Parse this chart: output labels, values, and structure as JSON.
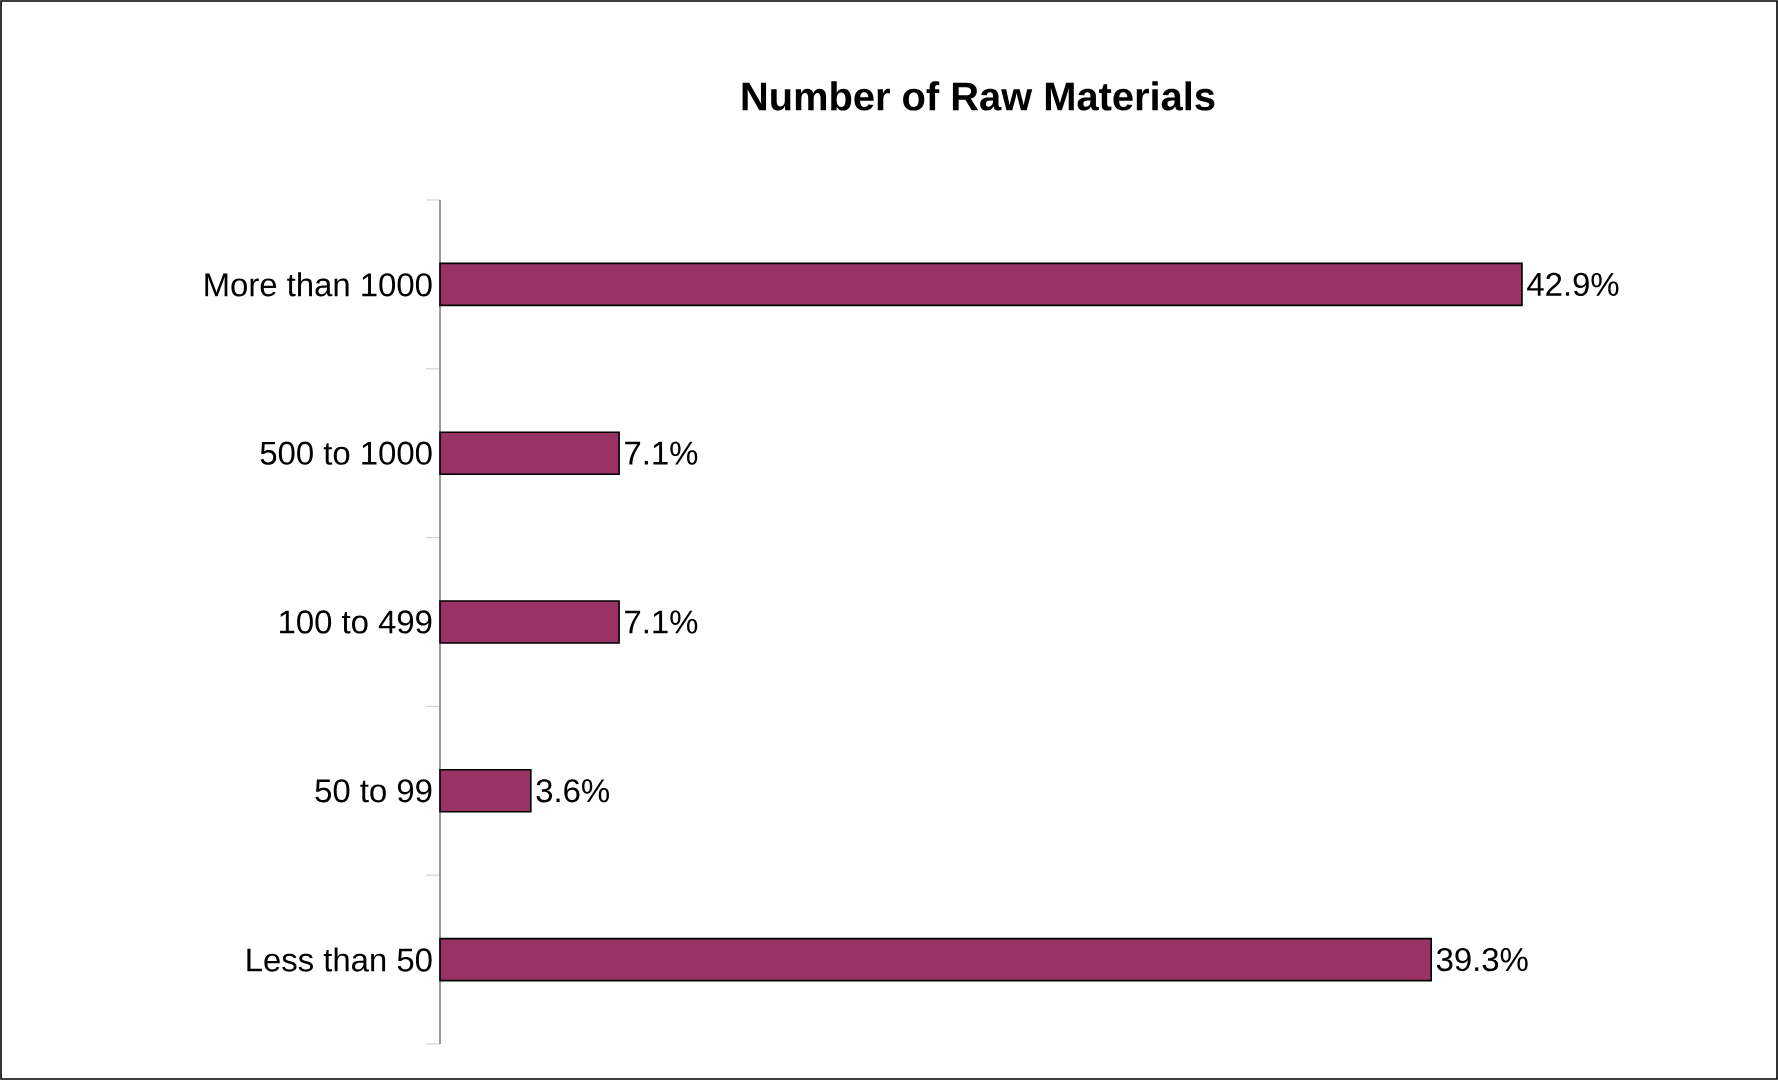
{
  "chart_data": {
    "type": "bar",
    "orientation": "horizontal",
    "title": "Number of Raw Materials",
    "categories": [
      "More than 1000",
      "500 to 1000",
      "100 to 499",
      "50 to 99",
      "Less than 50"
    ],
    "values": [
      42.9,
      7.1,
      7.1,
      3.6,
      39.3
    ],
    "value_labels": [
      "42.9%",
      "7.1%",
      "7.1%",
      "3.6%",
      "39.3%"
    ],
    "color": "#993366"
  }
}
